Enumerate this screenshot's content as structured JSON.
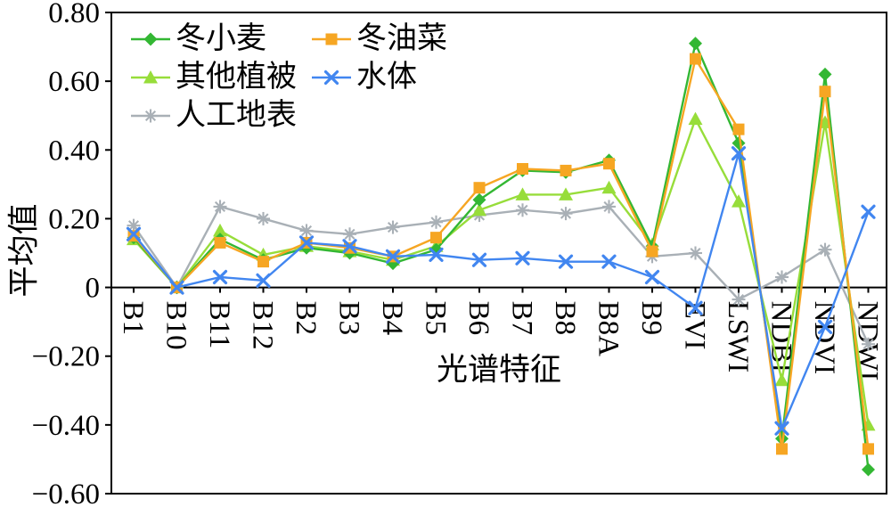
{
  "chart_data": {
    "type": "line",
    "title": "",
    "xlabel": "光谱特征",
    "ylabel": "平均值",
    "ylim": [
      -0.6,
      0.8
    ],
    "ytick_step": 0.2,
    "ytick_labels": [
      "0.80",
      "0.60",
      "0.40",
      "0.20",
      "0",
      "−0.20",
      "−0.40",
      "−0.60"
    ],
    "grid": "off",
    "legend_position": "top-left-inside",
    "categories": [
      "B1",
      "B10",
      "B11",
      "B12",
      "B2",
      "B3",
      "B4",
      "B5",
      "B6",
      "B7",
      "B8",
      "B8A",
      "B9",
      "EVI",
      "LSWI",
      "NDBI",
      "NDVI",
      "NDWI"
    ],
    "series": [
      {
        "name": "冬小麦",
        "marker": "diamond",
        "color": "#33b733",
        "values": [
          0.145,
          0.0,
          0.14,
          0.08,
          0.115,
          0.1,
          0.07,
          0.11,
          0.255,
          0.34,
          0.335,
          0.37,
          0.12,
          0.71,
          0.42,
          -0.44,
          0.62,
          -0.53
        ]
      },
      {
        "name": "冬油菜",
        "marker": "square",
        "color": "#f6a623",
        "values": [
          0.15,
          0.0,
          0.13,
          0.075,
          0.13,
          0.115,
          0.09,
          0.145,
          0.29,
          0.345,
          0.34,
          0.36,
          0.105,
          0.665,
          0.46,
          -0.47,
          0.57,
          -0.47
        ]
      },
      {
        "name": "其他植被",
        "marker": "triangle",
        "color": "#97dd3a",
        "values": [
          0.14,
          0.0,
          0.165,
          0.095,
          0.12,
          0.105,
          0.08,
          0.12,
          0.225,
          0.27,
          0.27,
          0.29,
          0.125,
          0.49,
          0.25,
          -0.27,
          0.48,
          -0.4
        ]
      },
      {
        "name": "水体",
        "marker": "x",
        "color": "#4186f0",
        "values": [
          0.155,
          0.0,
          0.03,
          0.02,
          0.13,
          0.12,
          0.09,
          0.095,
          0.08,
          0.085,
          0.075,
          0.075,
          0.03,
          -0.06,
          0.39,
          -0.41,
          -0.115,
          0.22
        ]
      },
      {
        "name": "人工地表",
        "marker": "asterisk",
        "color": "#a9b0b6",
        "values": [
          0.18,
          0.0,
          0.235,
          0.2,
          0.165,
          0.155,
          0.175,
          0.19,
          0.21,
          0.225,
          0.215,
          0.235,
          0.09,
          0.1,
          -0.035,
          0.03,
          0.11,
          -0.165
        ]
      }
    ]
  }
}
